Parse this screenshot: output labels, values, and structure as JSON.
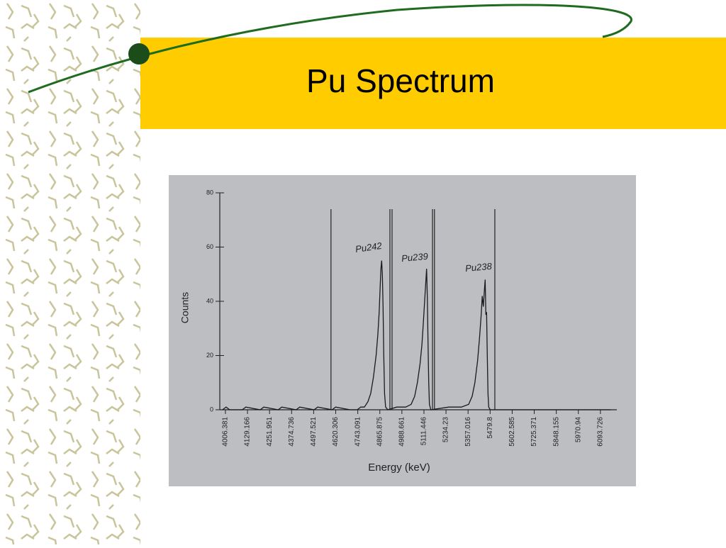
{
  "slide_title": "Pu Spectrum",
  "chart_data": {
    "type": "line",
    "x_label": "Energy (keV)",
    "y_label": "Counts",
    "x": [
      3990,
      4010,
      4030,
      4100,
      4120,
      4200,
      4220,
      4300,
      4320,
      4400,
      4420,
      4500,
      4520,
      4600,
      4620,
      4700,
      4740,
      4760,
      4780,
      4800,
      4815,
      4830,
      4845,
      4855,
      4862,
      4868,
      4872,
      4876,
      4880,
      4884,
      4888,
      4892,
      4898,
      4910,
      4960,
      5010,
      5040,
      5060,
      5075,
      5090,
      5100,
      5108,
      5115,
      5120,
      5126,
      5130,
      5134,
      5138,
      5142,
      5150,
      5250,
      5320,
      5360,
      5380,
      5395,
      5410,
      5420,
      5430,
      5436,
      5442,
      5448,
      5452,
      5456,
      5460,
      5464,
      5468,
      5472,
      5480,
      6150
    ],
    "values": [
      0,
      1,
      0,
      0,
      1,
      0,
      1,
      0,
      1,
      0,
      1,
      0,
      1,
      0,
      1,
      0,
      0,
      1,
      1,
      3,
      6,
      12,
      20,
      28,
      36,
      46,
      52,
      55,
      50,
      38,
      20,
      6,
      1,
      0,
      1,
      1,
      2,
      5,
      10,
      17,
      24,
      32,
      40,
      45,
      52,
      42,
      25,
      10,
      2,
      0,
      1,
      1,
      2,
      5,
      10,
      18,
      26,
      35,
      42,
      38,
      44,
      48,
      35,
      36,
      20,
      6,
      1,
      0,
      0
    ],
    "color": "#1a1a1a",
    "xlim": [
      3975,
      6185
    ],
    "ylim": [
      0,
      80
    ],
    "xticks": [
      4006.381,
      4129.166,
      4251.951,
      4374.736,
      4497.521,
      4620.306,
      4743.091,
      4865.875,
      4988.661,
      5111.446,
      5234.23,
      5357.016,
      5479.8,
      5602.585,
      5725.371,
      5848.155,
      5970.94,
      6093.726
    ],
    "yticks": [
      0,
      20,
      40,
      60,
      80
    ],
    "roi_lines": [
      4594,
      4922,
      4934,
      5159,
      5170,
      5506
    ],
    "annotations": [
      "Pu242",
      "Pu239",
      "Pu238"
    ]
  }
}
